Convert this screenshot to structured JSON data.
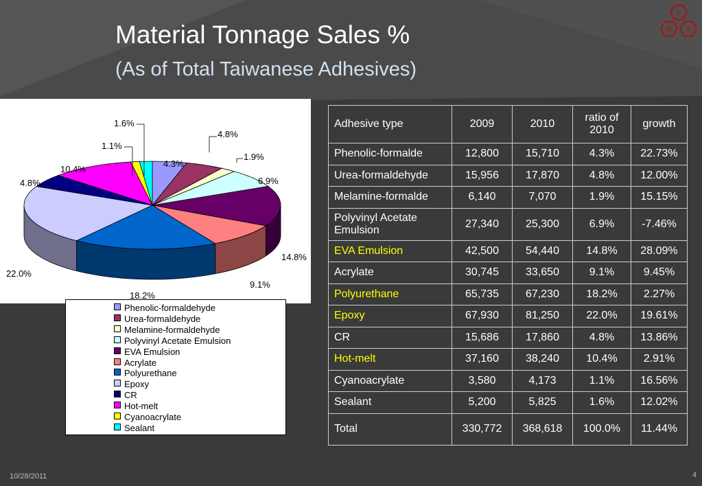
{
  "slide": {
    "title": "Material Tonnage Sales %",
    "subtitle": "(As of Total Taiwanese Adhesives)",
    "date": "10/28/2011",
    "page_number": "4",
    "logo_letters": [
      "S",
      "R",
      "A"
    ],
    "accent_color": "#cc0000"
  },
  "table": {
    "headers": [
      "Adhesive type",
      "2009",
      "2010",
      "ratio of 2010",
      "growth"
    ],
    "rows": [
      {
        "type": "Phenolic-formalde",
        "y2009": "12,800",
        "y2010": "15,710",
        "ratio": "4.3%",
        "growth": "22.73%",
        "highlight": false
      },
      {
        "type": "Urea-formaldehyde",
        "y2009": "15,956",
        "y2010": "17,870",
        "ratio": "4.8%",
        "growth": "12.00%",
        "highlight": false
      },
      {
        "type": "Melamine-formalde",
        "y2009": "6,140",
        "y2010": "7,070",
        "ratio": "1.9%",
        "growth": "15.15%",
        "highlight": false
      },
      {
        "type": "Polyvinyl Acetate Emulsion",
        "y2009": "27,340",
        "y2010": "25,300",
        "ratio": "6.9%",
        "growth": "-7.46%",
        "highlight": false
      },
      {
        "type": "EVA Emulsion",
        "y2009": "42,500",
        "y2010": "54,440",
        "ratio": "14.8%",
        "growth": "28.09%",
        "highlight": true
      },
      {
        "type": "Acrylate",
        "y2009": "30,745",
        "y2010": "33,650",
        "ratio": "9.1%",
        "growth": "9.45%",
        "highlight": false
      },
      {
        "type": "Polyurethane",
        "y2009": "65,735",
        "y2010": "67,230",
        "ratio": "18.2%",
        "growth": "2.27%",
        "highlight": true
      },
      {
        "type": "Epoxy",
        "y2009": "67,930",
        "y2010": "81,250",
        "ratio": "22.0%",
        "growth": "19.61%",
        "highlight": true
      },
      {
        "type": "CR",
        "y2009": "15,686",
        "y2010": "17,860",
        "ratio": "4.8%",
        "growth": "13.86%",
        "highlight": false
      },
      {
        "type": "Hot-melt",
        "y2009": "37,160",
        "y2010": "38,240",
        "ratio": "10.4%",
        "growth": "2.91%",
        "highlight": true
      },
      {
        "type": "Cyanoacrylate",
        "y2009": "3,580",
        "y2010": "4,173",
        "ratio": "1.1%",
        "growth": "16.56%",
        "highlight": false
      },
      {
        "type": "Sealant",
        "y2009": "5,200",
        "y2010": "5,825",
        "ratio": "1.6%",
        "growth": "12.02%",
        "highlight": false
      },
      {
        "type": "Total",
        "y2009": "330,772",
        "y2010": "368,618",
        "ratio": "100.0%",
        "growth": "11.44%",
        "highlight": false
      }
    ],
    "highlight_color": "#ffff00"
  },
  "chart_data": {
    "type": "pie",
    "style": "3d",
    "legend_placement": "bottom",
    "categories": [
      "Phenolic-formaldehyde",
      "Urea-formaldehyde",
      "Melamine-formaldehyde",
      "Polyvinyl Acetate Emulsion",
      "EVA Emulsion",
      "Acrylate",
      "Polyurethane",
      "Epoxy",
      "CR",
      "Hot-melt",
      "Cyanoacrylate",
      "Sealant"
    ],
    "values": [
      4.3,
      4.8,
      1.9,
      6.9,
      14.8,
      9.1,
      18.2,
      22.0,
      4.8,
      10.4,
      1.1,
      1.6
    ],
    "labels": [
      "4.3%",
      "4.8%",
      "1.9%",
      "6.9%",
      "14.8%",
      "9.1%",
      "18.2%",
      "22.0%",
      "4.8%",
      "10.4%",
      "1.1%",
      "1.6%"
    ],
    "colors": [
      "#9999ff",
      "#993366",
      "#ffffcc",
      "#ccffff",
      "#660066",
      "#ff8080",
      "#0066cc",
      "#ccccff",
      "#000080",
      "#ff00ff",
      "#ffff00",
      "#00ffff"
    ]
  }
}
